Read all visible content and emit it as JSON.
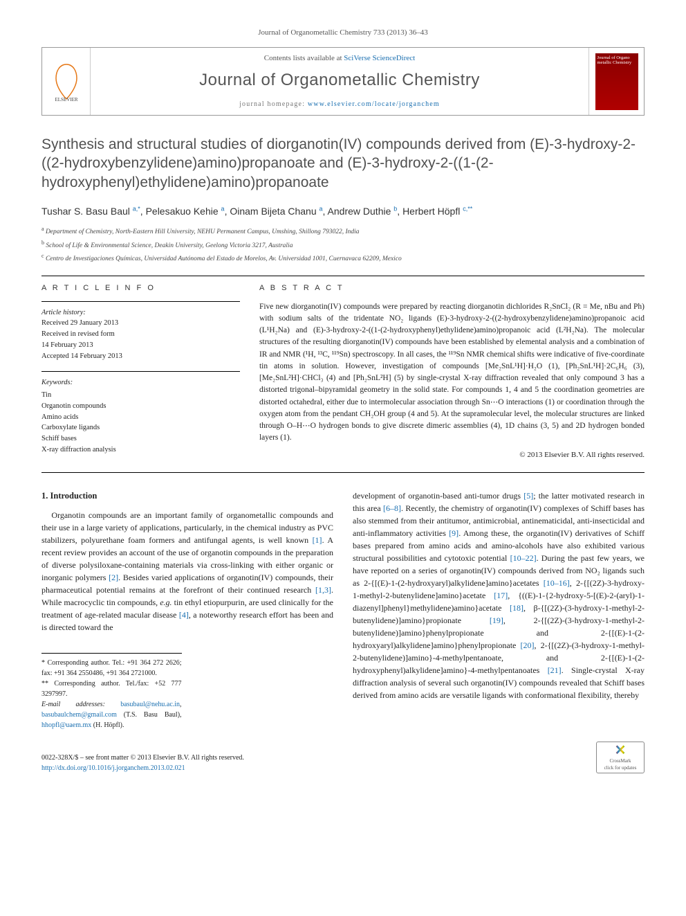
{
  "header": {
    "citation": "Journal of Organometallic Chemistry 733 (2013) 36–43",
    "contents_avail": "Contents lists available at ",
    "contents_link": "SciVerse ScienceDirect",
    "journal_name": "Journal of Organometallic Chemistry",
    "homepage_label": "journal homepage: ",
    "homepage_link": "www.elsevier.com/locate/jorganchem",
    "cover_journal": "Journal of Organo metallic Chemistry"
  },
  "title": "Synthesis and structural studies of diorganotin(IV) compounds derived from (E)-3-hydroxy-2-((2-hydroxybenzylidene)amino)propanoate and (E)-3-hydroxy-2-((1-(2-hydroxyphenyl)ethylidene)amino)propanoate",
  "authors_html": "Tushar S. Basu Baul <sup>a,*</sup>, Pelesakuo Kehie <sup>a</sup>, Oinam Bijeta Chanu <sup>a</sup>, Andrew Duthie <sup>b</sup>, Herbert Höpfl <sup>c,**</sup>",
  "affiliations": [
    "a Department of Chemistry, North-Eastern Hill University, NEHU Permanent Campus, Umshing, Shillong 793022, India",
    "b School of Life & Environmental Science, Deakin University, Geelong Victoria 3217, Australia",
    "c Centro de Investigaciones Químicas, Universidad Autónoma del Estado de Morelos, Av. Universidad 1001, Cuernavaca 62209, Mexico"
  ],
  "article_info": {
    "heading": "A R T I C L E   I N F O",
    "history_label": "Article history:",
    "history": [
      "Received 29 January 2013",
      "Received in revised form",
      "14 February 2013",
      "Accepted 14 February 2013"
    ],
    "keywords_label": "Keywords:",
    "keywords": [
      "Tin",
      "Organotin compounds",
      "Amino acids",
      "Carboxylate ligands",
      "Schiff bases",
      "X-ray diffraction analysis"
    ]
  },
  "abstract": {
    "heading": "A B S T R A C T",
    "text": "Five new diorganotin(IV) compounds were prepared by reacting diorganotin dichlorides R₂SnCl₂ (R = Me, nBu and Ph) with sodium salts of the tridentate NO₂ ligands (E)-3-hydroxy-2-((2-hydroxybenzylidene)amino)propanoic acid (L¹H₂Na) and (E)-3-hydroxy-2-((1-(2-hydroxyphenyl)ethylidene)amino)propanoic acid (L²H₂Na). The molecular structures of the resulting diorganotin(IV) compounds have been established by elemental analysis and a combination of IR and NMR (¹H, ¹³C, ¹¹⁹Sn) spectroscopy. In all cases, the ¹¹⁹Sn NMR chemical shifts were indicative of five-coordinate tin atoms in solution. However, investigation of compounds [Me₂SnL¹H]·H₂O (1), [Ph₂SnL¹H]·2C₆H₆ (3), [Me₂SnL²H]·CHCl₃ (4) and [Ph₂SnL²H] (5) by single-crystal X-ray diffraction revealed that only compound 3 has a distorted trigonal–bipyramidal geometry in the solid state. For compounds 1, 4 and 5 the coordination geometries are distorted octahedral, either due to intermolecular association through Sn⋯O interactions (1) or coordination through the oxygen atom from the pendant CH₂OH group (4 and 5). At the supramolecular level, the molecular structures are linked through O–H⋯O hydrogen bonds to give discrete dimeric assemblies (4), 1D chains (3, 5) and 2D hydrogen bonded layers (1).",
    "copyright": "© 2013 Elsevier B.V. All rights reserved."
  },
  "introduction": {
    "heading": "1. Introduction",
    "col1": "Organotin compounds are an important family of organometallic compounds and their use in a large variety of applications, particularly, in the chemical industry as PVC stabilizers, polyurethane foam formers and antifungal agents, is well known [1]. A recent review provides an account of the use of organotin compounds in the preparation of diverse polysiloxane-containing materials via cross-linking with either organic or inorganic polymers [2]. Besides varied applications of organotin(IV) compounds, their pharmaceutical potential remains at the forefront of their continued research [1,3]. While macrocyclic tin compounds, e.g. tin ethyl etiopurpurin, are used clinically for the treatment of age-related macular disease [4], a noteworthy research effort has been and is directed toward the",
    "col2": "development of organotin-based anti-tumor drugs [5]; the latter motivated research in this area [6–8]. Recently, the chemistry of organotin(IV) complexes of Schiff bases has also stemmed from their antitumor, antimicrobial, antinematicidal, anti-insecticidal and anti-inflammatory activities [9]. Among these, the organotin(IV) derivatives of Schiff bases prepared from amino acids and amino-alcohols have also exhibited various structural possibilities and cytotoxic potential [10–22]. During the past few years, we have reported on a series of organotin(IV) compounds derived from NO₂ ligands such as 2-{[(E)-1-(2-hydroxyaryl)alkylidene]amino}acetates [10–16], 2-{[(2Z)-3-hydroxy-1-methyl-2-butenylidene]amino}acetate [17], {((E)-1-{2-hydroxy-5-[(E)-2-(aryl)-1-diazenyl]phenyl}methylidene)amino}acetate [18], β-{[(2Z)-(3-hydroxy-1-methyl-2-butenylidene)]amino}propionate [19], 2-{[(2Z)-(3-hydroxy-1-methyl-2-butenylidene)]amino}phenylpropionate and 2-{[(E)-1-(2-hydroxyaryl)alkylidene]amino}phenylpropionate [20], 2-{[(2Z)-(3-hydroxy-1-methyl-2-butenylidene)]amino}-4-methylpentanoate, and 2-{[(E)-1-(2-hydroxyphenyl)alkylidene]amino}-4-methylpentanoates [21]. Single-crystal X-ray diffraction analysis of several such organotin(IV) compounds revealed that Schiff bases derived from amino acids are versatile ligands with conformational flexibility, thereby"
  },
  "footnotes": {
    "star1_label": "* Corresponding author. Tel.: +91 364 272 2626; fax: +91 364 2550486, +91 364 2721000.",
    "star2_label": "** Corresponding author. Tel./fax: +52 777 3297997.",
    "emails_label": "E-mail addresses: ",
    "email1": "basubaul@nehu.ac.in",
    "email2": "basubaulchem@gmail.com",
    "email_paren1": " (T.S. Basu Baul), ",
    "email3": "hhopfl@uaem.mx",
    "email_paren2": " (H. Höpfl)."
  },
  "footer": {
    "line1": "0022-328X/$ – see front matter © 2013 Elsevier B.V. All rights reserved.",
    "doi_label": "http://dx.doi.org/10.1016/j.jorganchem.2013.02.021",
    "crossmark": "CrossMark",
    "crossmark_sub": "click for updates"
  }
}
